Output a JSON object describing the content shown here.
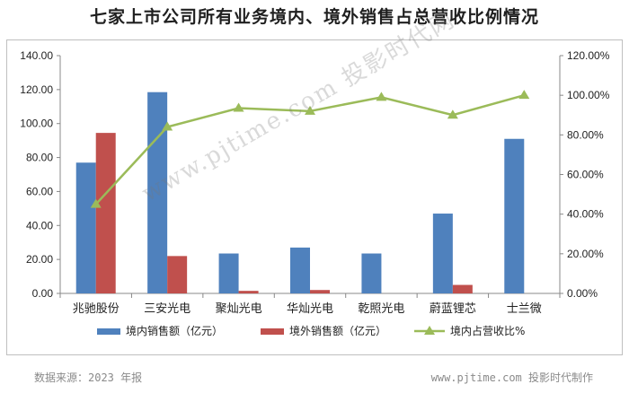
{
  "chart_data": {
    "type": "bar",
    "title": "七家上市公司所有业务境内、境外销售占总营收比例情况",
    "categories": [
      "兆驰股份",
      "三安光电",
      "聚灿光电",
      "华灿光电",
      "乾照光电",
      "蔚蓝锂芯",
      "士兰微"
    ],
    "y_left": {
      "ylim": [
        0,
        140
      ],
      "ticks": [
        "0.00",
        "20.00",
        "40.00",
        "60.00",
        "80.00",
        "100.00",
        "120.00",
        "140.00"
      ]
    },
    "y_right": {
      "ylim": [
        0,
        1.2
      ],
      "ticks": [
        "0.00%",
        "20.00%",
        "40.00%",
        "60.00%",
        "80.00%",
        "100.00%",
        "120.00%"
      ]
    },
    "series": [
      {
        "name": "境内销售额（亿元）",
        "type": "bar",
        "axis": "left",
        "color": "#4f81bd",
        "values": [
          77.0,
          118.5,
          23.5,
          27.0,
          23.5,
          47.0,
          91.0
        ]
      },
      {
        "name": "境外销售额（亿元）",
        "type": "bar",
        "axis": "left",
        "color": "#c0504d",
        "values": [
          94.5,
          22.0,
          1.5,
          2.0,
          0,
          5.0,
          0
        ]
      },
      {
        "name": "境内占营收比%",
        "type": "line",
        "axis": "right",
        "color": "#9bbb59",
        "values": [
          0.45,
          0.84,
          0.935,
          0.92,
          0.99,
          0.9,
          1.0
        ]
      }
    ],
    "legend_position": "bottom",
    "grid": false
  },
  "watermark": "www.pjtime.com 投影时代网",
  "footer": {
    "source": "数据来源：2023 年报",
    "credit": "www.pjtime.com 投影时代制作"
  }
}
